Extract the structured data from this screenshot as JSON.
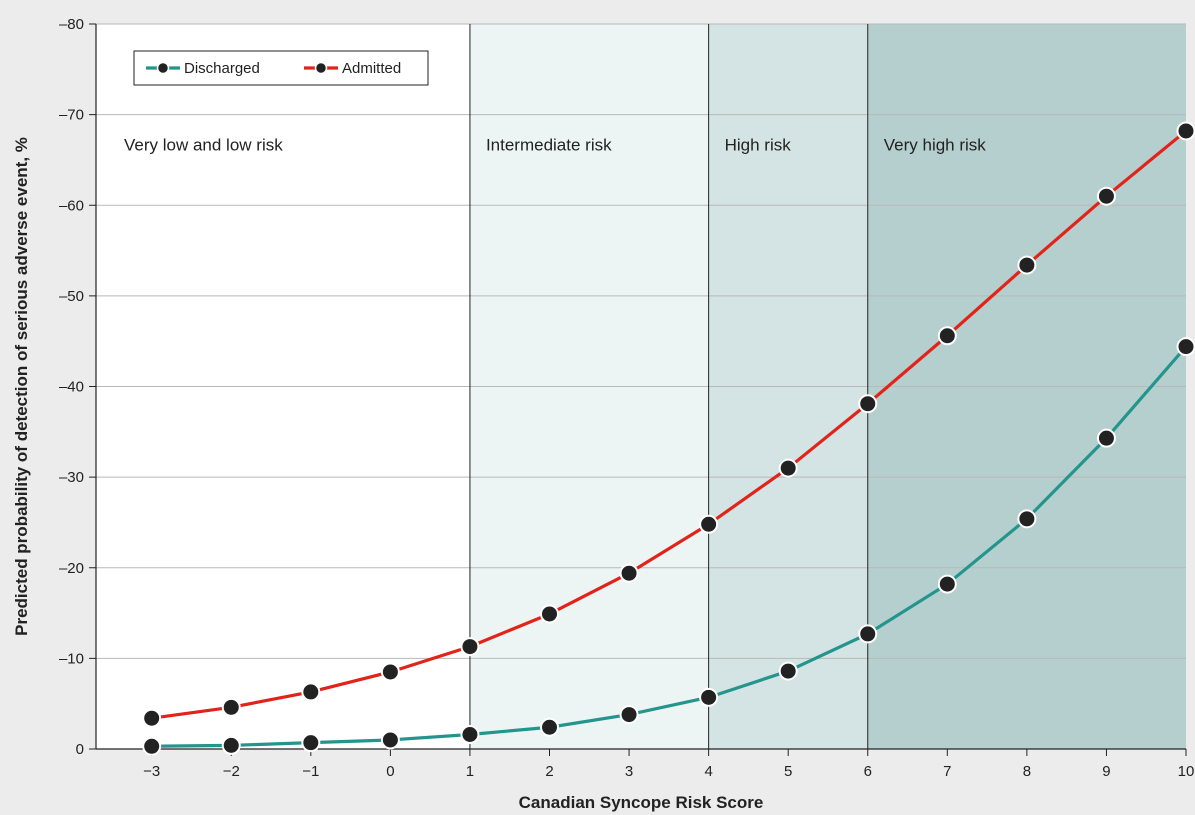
{
  "chart_data": {
    "type": "line",
    "title": "",
    "xlabel": "Canadian Syncope Risk Score",
    "ylabel": "Predicted probability of detection of serious adverse event, %",
    "x": [
      -3,
      -2,
      -1,
      0,
      1,
      2,
      3,
      4,
      5,
      6,
      7,
      8,
      9,
      10
    ],
    "x_ticks": [
      "−3",
      "−2",
      "−1",
      "0",
      "1",
      "2",
      "3",
      "4",
      "5",
      "6",
      "7",
      "8",
      "9",
      "10"
    ],
    "xlim": [
      -3.7,
      10
    ],
    "ylim": [
      0,
      80
    ],
    "y_ticks": [
      {
        "value": 0,
        "label": "0"
      },
      {
        "value": 10,
        "label": "–10"
      },
      {
        "value": 20,
        "label": "–20"
      },
      {
        "value": 30,
        "label": "–30"
      },
      {
        "value": 40,
        "label": "–40"
      },
      {
        "value": 50,
        "label": "–50"
      },
      {
        "value": 60,
        "label": "–60"
      },
      {
        "value": 70,
        "label": "–70"
      },
      {
        "value": 80,
        "label": "–80"
      }
    ],
    "grid": "horizontal",
    "legend_position": "top-left",
    "series": [
      {
        "name": "Discharged",
        "color": "#23958c",
        "values": [
          0.3,
          0.4,
          0.7,
          1.0,
          1.6,
          2.4,
          3.8,
          5.7,
          8.6,
          12.7,
          18.2,
          25.4,
          34.3,
          44.4
        ]
      },
      {
        "name": "Admitted",
        "color": "#e2231a",
        "values": [
          3.4,
          4.6,
          6.3,
          8.5,
          11.3,
          14.9,
          19.4,
          24.8,
          31.0,
          38.1,
          45.6,
          53.4,
          61.0,
          68.2
        ]
      }
    ],
    "regions": [
      {
        "label": "Very low and low risk",
        "from": -3.7,
        "to": 1,
        "color": "#ffffff"
      },
      {
        "label": "Intermediate risk",
        "from": 1,
        "to": 4,
        "color": "#edf4f4"
      },
      {
        "label": "High risk",
        "from": 4,
        "to": 6,
        "color": "#d4e3e3"
      },
      {
        "label": "Very high risk",
        "from": 6,
        "to": 10,
        "color": "#b5cfce"
      }
    ]
  }
}
